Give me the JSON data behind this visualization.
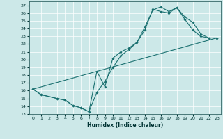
{
  "xlabel": "Humidex (Indice chaleur)",
  "ylabel": "",
  "background_color": "#cce8e8",
  "line_color": "#1a7070",
  "xlim": [
    -0.5,
    23.5
  ],
  "ylim": [
    13,
    27.5
  ],
  "xticks": [
    0,
    1,
    2,
    3,
    4,
    5,
    6,
    7,
    8,
    9,
    10,
    11,
    12,
    13,
    14,
    15,
    16,
    17,
    18,
    19,
    20,
    21,
    22,
    23
  ],
  "yticks": [
    13,
    14,
    15,
    16,
    17,
    18,
    19,
    20,
    21,
    22,
    23,
    24,
    25,
    26,
    27
  ],
  "line1_x": [
    0,
    1,
    3,
    4,
    5,
    6,
    7,
    8,
    9,
    10,
    11,
    12,
    13,
    14,
    15,
    16,
    17,
    18,
    19,
    20,
    21,
    22,
    23
  ],
  "line1_y": [
    16.2,
    15.5,
    15.0,
    14.8,
    14.1,
    13.8,
    13.3,
    18.5,
    16.5,
    20.2,
    21.0,
    21.5,
    22.2,
    24.2,
    26.4,
    26.8,
    26.2,
    26.7,
    25.2,
    23.8,
    23.0,
    22.8,
    22.8
  ],
  "line2_x": [
    0,
    1,
    3,
    4,
    5,
    6,
    7,
    8,
    9,
    10,
    11,
    12,
    13,
    14,
    15,
    16,
    17,
    18,
    19,
    20,
    21,
    22,
    23
  ],
  "line2_y": [
    16.2,
    15.5,
    15.0,
    14.8,
    14.1,
    13.8,
    13.3,
    15.8,
    17.2,
    19.0,
    20.5,
    21.3,
    22.2,
    23.8,
    26.5,
    26.2,
    26.0,
    26.7,
    25.5,
    24.8,
    23.3,
    22.8,
    22.8
  ],
  "line3_x": [
    0,
    23
  ],
  "line3_y": [
    16.2,
    22.8
  ]
}
